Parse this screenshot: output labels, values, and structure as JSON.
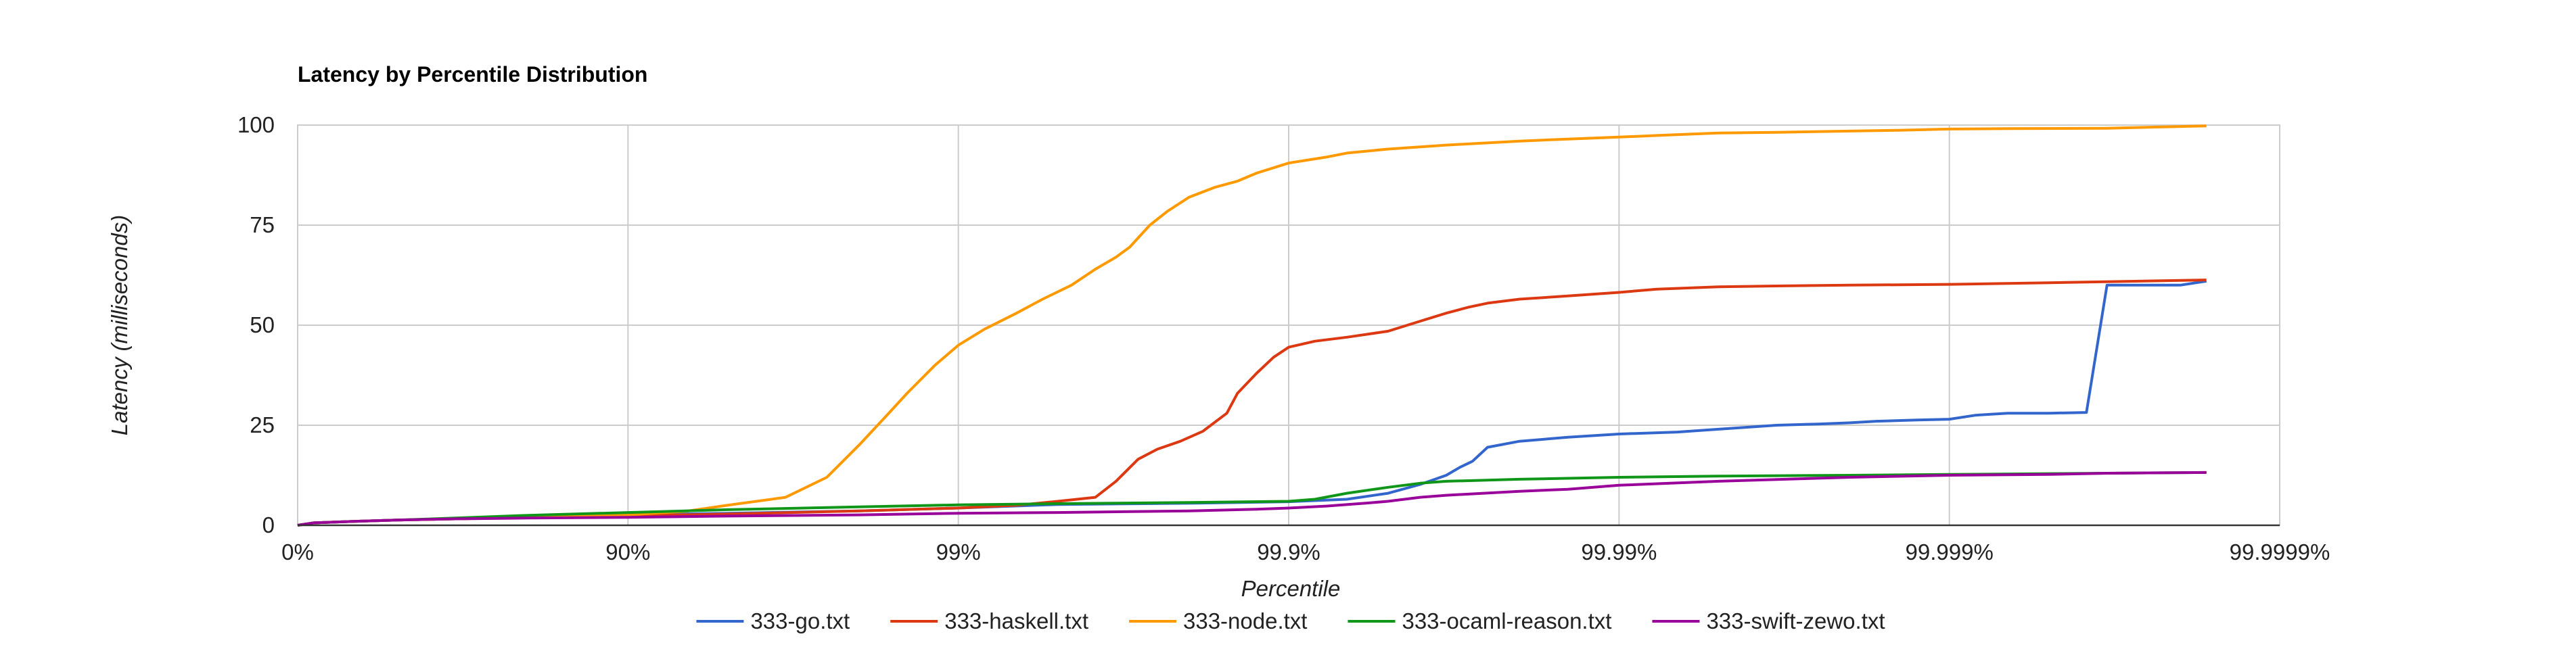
{
  "chart_data": {
    "type": "line",
    "title": "Latency by Percentile Distribution",
    "xlabel": "Percentile",
    "ylabel": "Latency (milliseconds)",
    "x_scale": "log-percentile (1/(1-p))",
    "xlim": [
      1,
      1000000
    ],
    "ylim": [
      0,
      100
    ],
    "x_ticks": [
      {
        "value": 1,
        "label": "0%"
      },
      {
        "value": 10,
        "label": "90%"
      },
      {
        "value": 100,
        "label": "99%"
      },
      {
        "value": 1000,
        "label": "99.9%"
      },
      {
        "value": 10000,
        "label": "99.99%"
      },
      {
        "value": 100000,
        "label": "99.999%"
      },
      {
        "value": 1000000,
        "label": "99.9999%"
      }
    ],
    "y_ticks": [
      {
        "value": 0,
        "label": "0"
      },
      {
        "value": 25,
        "label": "25"
      },
      {
        "value": 50,
        "label": "50"
      },
      {
        "value": 75,
        "label": "75"
      },
      {
        "value": 100,
        "label": "100"
      }
    ],
    "grid": true,
    "legend_position": "bottom",
    "series": [
      {
        "name": "333-go.txt",
        "color": "#3366cc",
        "x": [
          1,
          1.12,
          1.5,
          2,
          3,
          5,
          10,
          20,
          50,
          100,
          200,
          500,
          1000,
          1500,
          2000,
          2500,
          3000,
          3300,
          3600,
          4000,
          5000,
          7000,
          10000,
          15000,
          20000,
          30000,
          40000,
          50000,
          60000,
          80000,
          100000,
          120000,
          150000,
          200000,
          260000,
          300000,
          360000,
          500000,
          600000
        ],
        "y": [
          0,
          0.6,
          1,
          1.3,
          1.6,
          2,
          2.6,
          3,
          3.6,
          4.3,
          5.2,
          5.5,
          5.9,
          6.5,
          8,
          10.2,
          12.5,
          14.5,
          16,
          19.5,
          21,
          22,
          22.8,
          23.3,
          24,
          25,
          25.3,
          25.6,
          26,
          26.3,
          26.5,
          27.5,
          28,
          28,
          28.2,
          60,
          60,
          60,
          61
        ]
      },
      {
        "name": "333-haskell.txt",
        "color": "#dc3912",
        "x": [
          1,
          1.12,
          1.5,
          2,
          3,
          5,
          10,
          20,
          50,
          100,
          150,
          200,
          260,
          300,
          350,
          400,
          470,
          550,
          650,
          700,
          800,
          900,
          1000,
          1200,
          1500,
          2000,
          2500,
          3000,
          3500,
          4000,
          5000,
          7000,
          10000,
          13000,
          20000,
          30000,
          50000,
          100000,
          200000,
          600000
        ],
        "y": [
          0,
          0.6,
          1,
          1.3,
          1.6,
          2,
          2.4,
          2.8,
          3.6,
          4.3,
          5,
          6,
          7,
          11,
          16.5,
          19,
          21,
          23.5,
          28,
          33,
          38,
          42,
          44.5,
          46,
          47,
          48.5,
          51,
          53,
          54.5,
          55.5,
          56.5,
          57.3,
          58.2,
          59,
          59.6,
          59.8,
          60,
          60.2,
          60.6,
          61.3
        ]
      },
      {
        "name": "333-node.txt",
        "color": "#ff9900",
        "x": [
          1,
          1.12,
          1.5,
          2,
          3,
          5,
          10,
          15,
          20,
          30,
          40,
          50,
          60,
          70,
          85,
          100,
          120,
          150,
          180,
          220,
          260,
          300,
          330,
          380,
          430,
          500,
          600,
          700,
          800,
          1000,
          1300,
          1500,
          2000,
          3000,
          5000,
          7000,
          10000,
          14000,
          20000,
          30000,
          50000,
          70000,
          100000,
          150000,
          300000,
          600000
        ],
        "y": [
          0,
          0.6,
          1,
          1.3,
          1.6,
          2,
          2.6,
          3.5,
          5,
          7,
          12,
          20,
          27,
          33,
          40,
          45,
          49,
          53,
          56.5,
          60,
          64,
          67,
          69.5,
          75,
          78.5,
          82,
          84.5,
          86,
          88,
          90.5,
          92,
          93,
          94,
          95,
          96,
          96.5,
          97,
          97.5,
          98,
          98.2,
          98.5,
          98.7,
          99,
          99.1,
          99.2,
          99.8
        ]
      },
      {
        "name": "333-ocaml-reason.txt",
        "color": "#109618",
        "x": [
          1,
          1.12,
          1.5,
          2,
          3,
          5,
          10,
          20,
          50,
          100,
          200,
          500,
          1000,
          1200,
          1500,
          2000,
          2500,
          3000,
          5000,
          10000,
          20000,
          50000,
          100000,
          200000,
          300000,
          600000
        ],
        "y": [
          0,
          0.6,
          1,
          1.3,
          1.8,
          2.5,
          3.2,
          3.9,
          4.6,
          5.1,
          5.4,
          5.7,
          6,
          6.5,
          8,
          9.5,
          10.5,
          11,
          11.5,
          12,
          12.3,
          12.5,
          12.7,
          12.9,
          13,
          13.2
        ]
      },
      {
        "name": "333-swift-zewo.txt",
        "color": "#990099",
        "x": [
          1,
          1.12,
          1.5,
          2,
          3,
          5,
          10,
          20,
          50,
          100,
          200,
          500,
          800,
          1000,
          1300,
          1700,
          2000,
          2500,
          3000,
          5000,
          7000,
          10000,
          20000,
          50000,
          100000,
          200000,
          300000,
          600000
        ],
        "y": [
          0,
          0.6,
          1,
          1.3,
          1.6,
          1.8,
          2,
          2.3,
          2.6,
          3,
          3.2,
          3.6,
          4,
          4.3,
          4.8,
          5.5,
          6,
          7,
          7.5,
          8.5,
          9,
          10,
          11,
          12,
          12.5,
          12.7,
          13,
          13.2
        ]
      }
    ]
  }
}
